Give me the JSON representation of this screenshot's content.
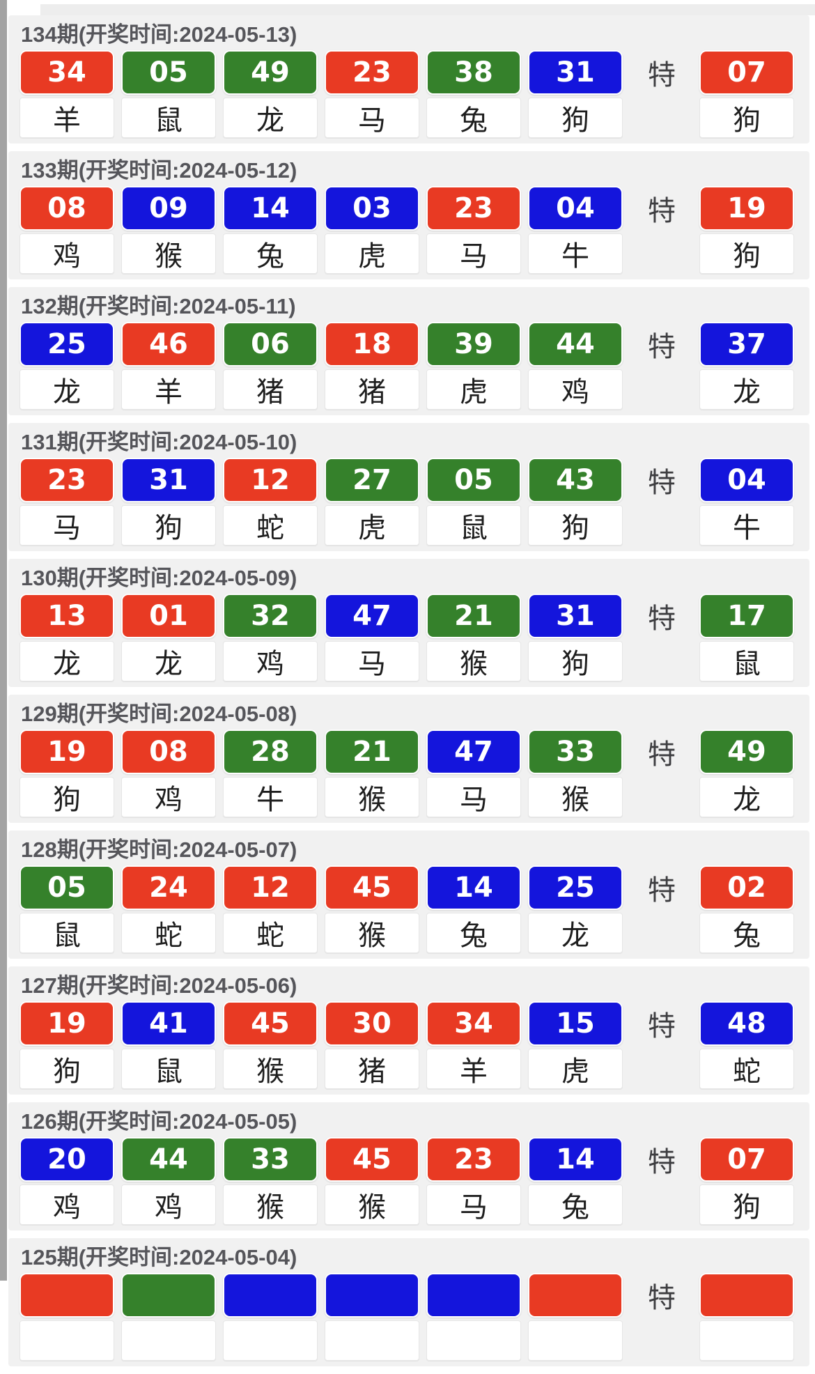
{
  "special_label": "特",
  "colors": {
    "red": "#e83a23",
    "green": "#35812b",
    "blue": "#1415dc"
  },
  "draws": [
    {
      "header": "134期(开奖时间:2024-05-13)",
      "balls": [
        {
          "num": "34",
          "color": "red",
          "zodiac": "羊"
        },
        {
          "num": "05",
          "color": "green",
          "zodiac": "鼠"
        },
        {
          "num": "49",
          "color": "green",
          "zodiac": "龙"
        },
        {
          "num": "23",
          "color": "red",
          "zodiac": "马"
        },
        {
          "num": "38",
          "color": "green",
          "zodiac": "兔"
        },
        {
          "num": "31",
          "color": "blue",
          "zodiac": "狗"
        }
      ],
      "special": {
        "num": "07",
        "color": "red",
        "zodiac": "狗"
      }
    },
    {
      "header": "133期(开奖时间:2024-05-12)",
      "balls": [
        {
          "num": "08",
          "color": "red",
          "zodiac": "鸡"
        },
        {
          "num": "09",
          "color": "blue",
          "zodiac": "猴"
        },
        {
          "num": "14",
          "color": "blue",
          "zodiac": "兔"
        },
        {
          "num": "03",
          "color": "blue",
          "zodiac": "虎"
        },
        {
          "num": "23",
          "color": "red",
          "zodiac": "马"
        },
        {
          "num": "04",
          "color": "blue",
          "zodiac": "牛"
        }
      ],
      "special": {
        "num": "19",
        "color": "red",
        "zodiac": "狗"
      }
    },
    {
      "header": "132期(开奖时间:2024-05-11)",
      "balls": [
        {
          "num": "25",
          "color": "blue",
          "zodiac": "龙"
        },
        {
          "num": "46",
          "color": "red",
          "zodiac": "羊"
        },
        {
          "num": "06",
          "color": "green",
          "zodiac": "猪"
        },
        {
          "num": "18",
          "color": "red",
          "zodiac": "猪"
        },
        {
          "num": "39",
          "color": "green",
          "zodiac": "虎"
        },
        {
          "num": "44",
          "color": "green",
          "zodiac": "鸡"
        }
      ],
      "special": {
        "num": "37",
        "color": "blue",
        "zodiac": "龙"
      }
    },
    {
      "header": "131期(开奖时间:2024-05-10)",
      "balls": [
        {
          "num": "23",
          "color": "red",
          "zodiac": "马"
        },
        {
          "num": "31",
          "color": "blue",
          "zodiac": "狗"
        },
        {
          "num": "12",
          "color": "red",
          "zodiac": "蛇"
        },
        {
          "num": "27",
          "color": "green",
          "zodiac": "虎"
        },
        {
          "num": "05",
          "color": "green",
          "zodiac": "鼠"
        },
        {
          "num": "43",
          "color": "green",
          "zodiac": "狗"
        }
      ],
      "special": {
        "num": "04",
        "color": "blue",
        "zodiac": "牛"
      }
    },
    {
      "header": "130期(开奖时间:2024-05-09)",
      "balls": [
        {
          "num": "13",
          "color": "red",
          "zodiac": "龙"
        },
        {
          "num": "01",
          "color": "red",
          "zodiac": "龙"
        },
        {
          "num": "32",
          "color": "green",
          "zodiac": "鸡"
        },
        {
          "num": "47",
          "color": "blue",
          "zodiac": "马"
        },
        {
          "num": "21",
          "color": "green",
          "zodiac": "猴"
        },
        {
          "num": "31",
          "color": "blue",
          "zodiac": "狗"
        }
      ],
      "special": {
        "num": "17",
        "color": "green",
        "zodiac": "鼠"
      }
    },
    {
      "header": "129期(开奖时间:2024-05-08)",
      "balls": [
        {
          "num": "19",
          "color": "red",
          "zodiac": "狗"
        },
        {
          "num": "08",
          "color": "red",
          "zodiac": "鸡"
        },
        {
          "num": "28",
          "color": "green",
          "zodiac": "牛"
        },
        {
          "num": "21",
          "color": "green",
          "zodiac": "猴"
        },
        {
          "num": "47",
          "color": "blue",
          "zodiac": "马"
        },
        {
          "num": "33",
          "color": "green",
          "zodiac": "猴"
        }
      ],
      "special": {
        "num": "49",
        "color": "green",
        "zodiac": "龙"
      }
    },
    {
      "header": "128期(开奖时间:2024-05-07)",
      "balls": [
        {
          "num": "05",
          "color": "green",
          "zodiac": "鼠"
        },
        {
          "num": "24",
          "color": "red",
          "zodiac": "蛇"
        },
        {
          "num": "12",
          "color": "red",
          "zodiac": "蛇"
        },
        {
          "num": "45",
          "color": "red",
          "zodiac": "猴"
        },
        {
          "num": "14",
          "color": "blue",
          "zodiac": "兔"
        },
        {
          "num": "25",
          "color": "blue",
          "zodiac": "龙"
        }
      ],
      "special": {
        "num": "02",
        "color": "red",
        "zodiac": "兔"
      }
    },
    {
      "header": "127期(开奖时间:2024-05-06)",
      "balls": [
        {
          "num": "19",
          "color": "red",
          "zodiac": "狗"
        },
        {
          "num": "41",
          "color": "blue",
          "zodiac": "鼠"
        },
        {
          "num": "45",
          "color": "red",
          "zodiac": "猴"
        },
        {
          "num": "30",
          "color": "red",
          "zodiac": "猪"
        },
        {
          "num": "34",
          "color": "red",
          "zodiac": "羊"
        },
        {
          "num": "15",
          "color": "blue",
          "zodiac": "虎"
        }
      ],
      "special": {
        "num": "48",
        "color": "blue",
        "zodiac": "蛇"
      }
    },
    {
      "header": "126期(开奖时间:2024-05-05)",
      "balls": [
        {
          "num": "20",
          "color": "blue",
          "zodiac": "鸡"
        },
        {
          "num": "44",
          "color": "green",
          "zodiac": "鸡"
        },
        {
          "num": "33",
          "color": "green",
          "zodiac": "猴"
        },
        {
          "num": "45",
          "color": "red",
          "zodiac": "猴"
        },
        {
          "num": "23",
          "color": "red",
          "zodiac": "马"
        },
        {
          "num": "14",
          "color": "blue",
          "zodiac": "兔"
        }
      ],
      "special": {
        "num": "07",
        "color": "red",
        "zodiac": "狗"
      }
    },
    {
      "header": "125期(开奖时间:2024-05-04)",
      "balls": [
        {
          "num": "",
          "color": "red",
          "zodiac": ""
        },
        {
          "num": "",
          "color": "green",
          "zodiac": ""
        },
        {
          "num": "",
          "color": "blue",
          "zodiac": ""
        },
        {
          "num": "",
          "color": "blue",
          "zodiac": ""
        },
        {
          "num": "",
          "color": "blue",
          "zodiac": ""
        },
        {
          "num": "",
          "color": "red",
          "zodiac": ""
        }
      ],
      "special": {
        "num": "",
        "color": "red",
        "zodiac": ""
      }
    }
  ]
}
